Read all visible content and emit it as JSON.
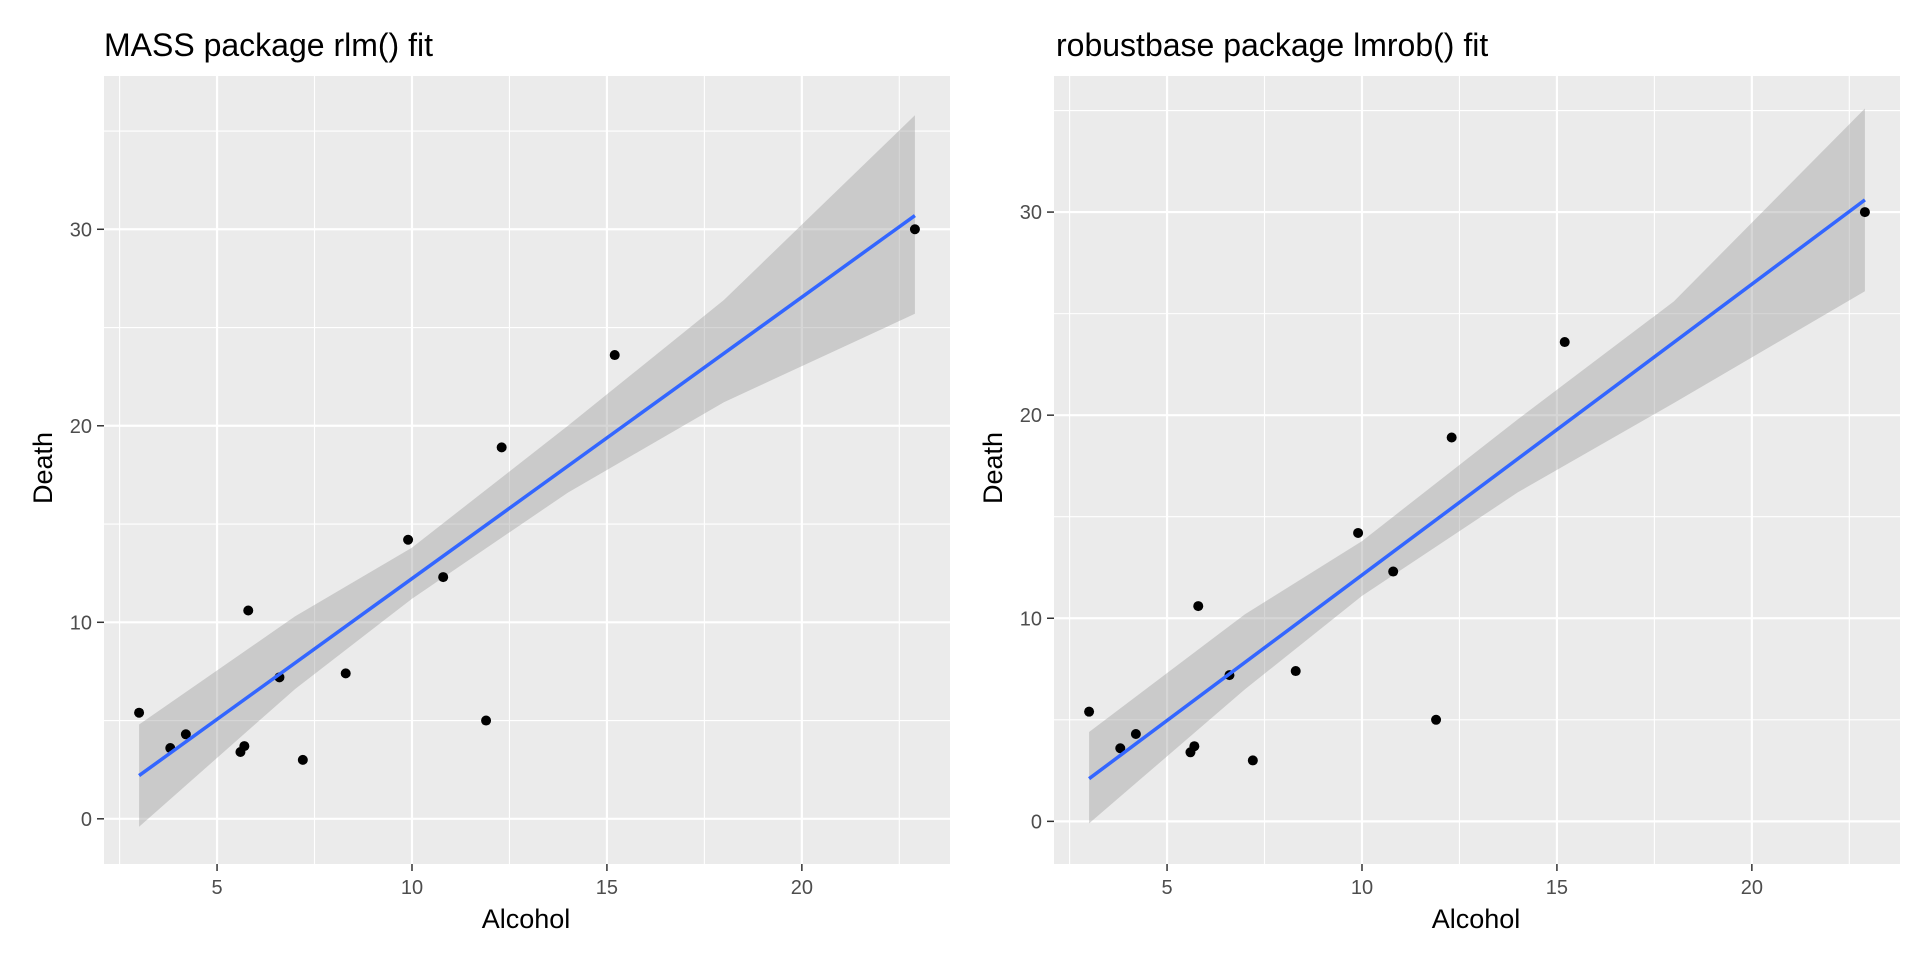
{
  "colors": {
    "fit_line": "#3366FF",
    "point": "#000000",
    "ribbon": "#999999",
    "panel_bg": "#EBEBEB"
  },
  "chart_data": [
    {
      "type": "scatter",
      "title": "MASS package rlm() fit",
      "xlabel": "Alcohol",
      "ylabel": "Death",
      "xlim": [
        2.1,
        23.8
      ],
      "ylim": [
        -2.3,
        37.8
      ],
      "x_ticks": [
        5,
        10,
        15,
        20
      ],
      "y_ticks": [
        0,
        10,
        20,
        30
      ],
      "x_tick_labels": [
        "5",
        "10",
        "15",
        "20"
      ],
      "y_tick_labels": [
        "0",
        "10",
        "20",
        "30"
      ],
      "points": [
        {
          "x": 3.0,
          "y": 5.4
        },
        {
          "x": 3.8,
          "y": 3.6
        },
        {
          "x": 4.2,
          "y": 4.3
        },
        {
          "x": 5.6,
          "y": 3.4
        },
        {
          "x": 5.7,
          "y": 3.7
        },
        {
          "x": 5.8,
          "y": 10.6
        },
        {
          "x": 6.6,
          "y": 7.2
        },
        {
          "x": 7.2,
          "y": 3.0
        },
        {
          "x": 8.3,
          "y": 7.4
        },
        {
          "x": 9.9,
          "y": 14.2
        },
        {
          "x": 10.8,
          "y": 12.3
        },
        {
          "x": 11.9,
          "y": 5.0
        },
        {
          "x": 12.3,
          "y": 18.9
        },
        {
          "x": 15.2,
          "y": 23.6
        },
        {
          "x": 22.9,
          "y": 30.0
        }
      ],
      "fit": {
        "x_start": 3.0,
        "x_end": 22.9,
        "y_start": 2.2,
        "y_end": 30.7
      },
      "ribbon": {
        "x": [
          3.0,
          7.0,
          10.0,
          14.0,
          18.0,
          22.9
        ],
        "lower": [
          -0.4,
          6.6,
          11.2,
          16.6,
          21.2,
          25.7
        ],
        "upper": [
          4.8,
          10.3,
          13.8,
          20.0,
          26.4,
          35.8
        ]
      }
    },
    {
      "type": "scatter",
      "title": "robustbase package lmrob() fit",
      "xlabel": "Alcohol",
      "ylabel": "Death",
      "xlim": [
        2.1,
        23.8
      ],
      "ylim": [
        -2.1,
        36.7
      ],
      "x_ticks": [
        5,
        10,
        15,
        20
      ],
      "y_ticks": [
        0,
        10,
        20,
        30
      ],
      "x_tick_labels": [
        "5",
        "10",
        "15",
        "20"
      ],
      "y_tick_labels": [
        "0",
        "10",
        "20",
        "30"
      ],
      "points": [
        {
          "x": 3.0,
          "y": 5.4
        },
        {
          "x": 3.8,
          "y": 3.6
        },
        {
          "x": 4.2,
          "y": 4.3
        },
        {
          "x": 5.6,
          "y": 3.4
        },
        {
          "x": 5.7,
          "y": 3.7
        },
        {
          "x": 5.8,
          "y": 10.6
        },
        {
          "x": 6.6,
          "y": 7.2
        },
        {
          "x": 7.2,
          "y": 3.0
        },
        {
          "x": 8.3,
          "y": 7.4
        },
        {
          "x": 9.9,
          "y": 14.2
        },
        {
          "x": 10.8,
          "y": 12.3
        },
        {
          "x": 11.9,
          "y": 5.0
        },
        {
          "x": 12.3,
          "y": 18.9
        },
        {
          "x": 15.2,
          "y": 23.6
        },
        {
          "x": 22.9,
          "y": 30.0
        }
      ],
      "fit": {
        "x_start": 3.0,
        "x_end": 22.9,
        "y_start": 2.1,
        "y_end": 30.6
      },
      "ribbon": {
        "x": [
          3.0,
          7.0,
          10.0,
          14.0,
          18.0,
          22.9
        ],
        "lower": [
          -0.1,
          6.5,
          11.1,
          16.2,
          20.6,
          26.1
        ],
        "upper": [
          4.4,
          10.2,
          13.8,
          19.8,
          25.6,
          35.1
        ]
      }
    }
  ]
}
